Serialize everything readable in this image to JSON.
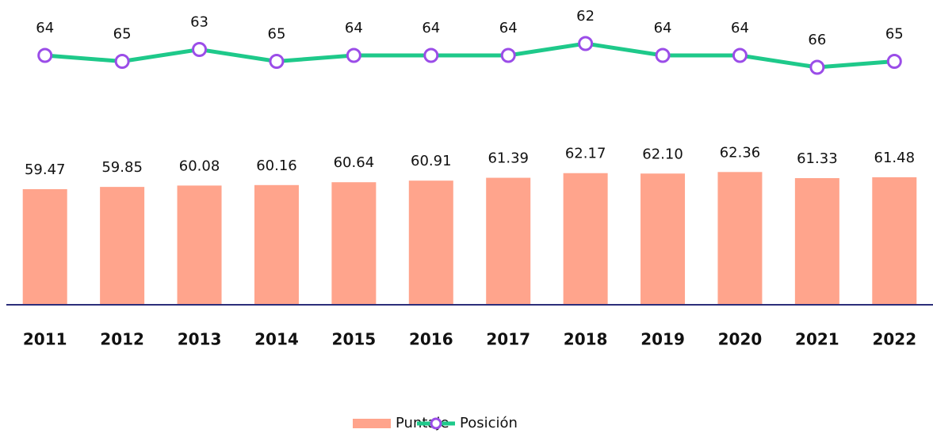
{
  "chart_data": {
    "type": "bar",
    "categories": [
      "2011",
      "2012",
      "2013",
      "2014",
      "2015",
      "2016",
      "2017",
      "2018",
      "2019",
      "2020",
      "2021",
      "2022"
    ],
    "series": [
      {
        "name": "Puntaje",
        "type": "bar",
        "color": "#ffa48c",
        "values": [
          59.47,
          59.85,
          60.08,
          60.16,
          60.64,
          60.91,
          61.39,
          62.17,
          62.1,
          62.36,
          61.33,
          61.48
        ],
        "value_labels": [
          "59.47",
          "59.85",
          "60.08",
          "60.16",
          "60.64",
          "60.91",
          "61.39",
          "62.17",
          "62.10",
          "62.36",
          "61.33",
          "61.48"
        ]
      },
      {
        "name": "Posición",
        "type": "line",
        "axis": "y2",
        "color": "#1ec98a",
        "marker_color": "#9b4de8",
        "values": [
          64,
          65,
          63,
          65,
          64,
          64,
          64,
          62,
          64,
          64,
          66,
          65
        ]
      }
    ],
    "ylim": [
      40,
      90
    ],
    "y2lim": [
      106,
      56
    ]
  }
}
